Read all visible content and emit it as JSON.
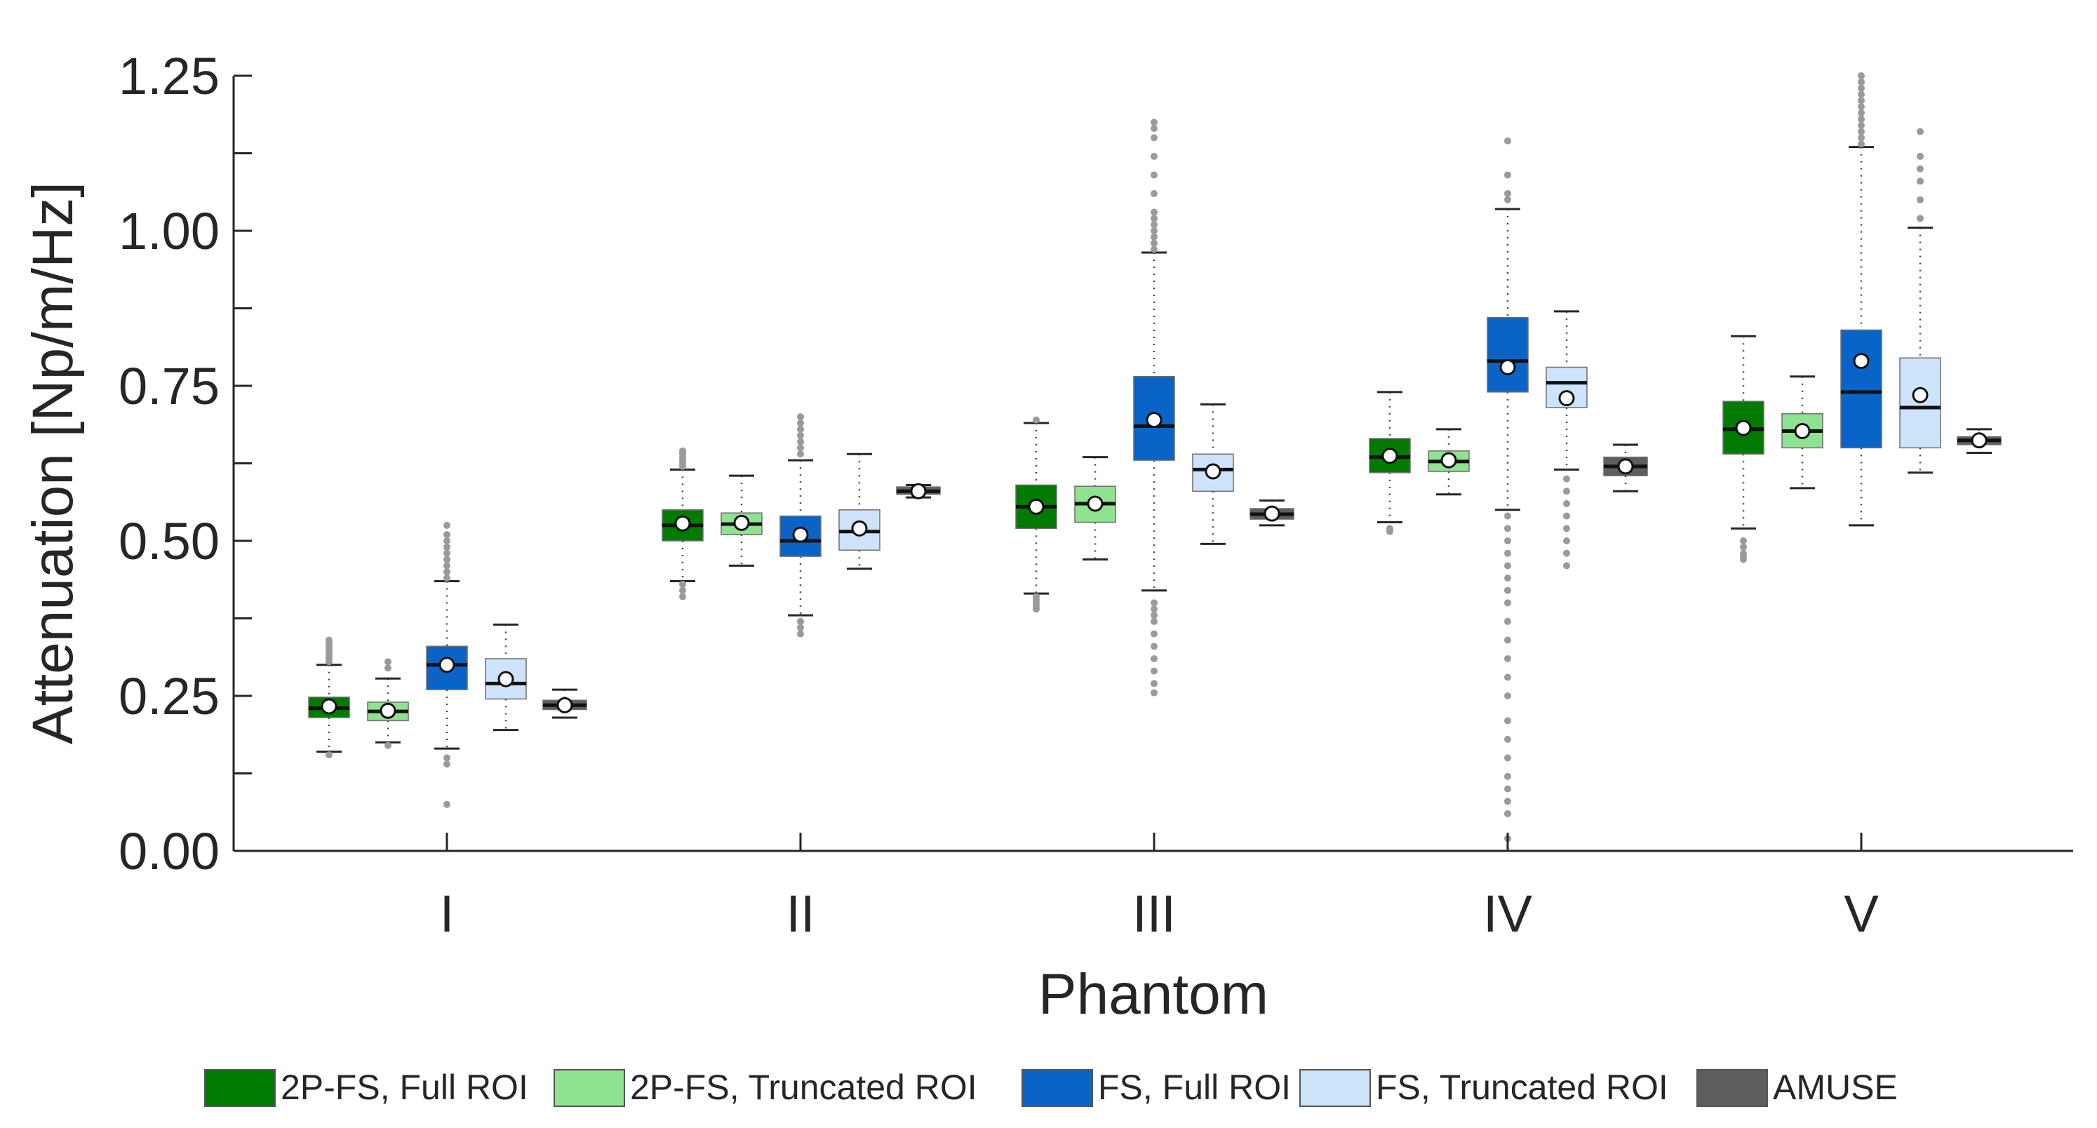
{
  "chart_data": {
    "type": "boxplot",
    "title": "",
    "xlabel": "Phantom",
    "ylabel": "Attenuation [Np/m/Hz]",
    "ylim": [
      0,
      1.25
    ],
    "ytick_values": [
      0,
      0.25,
      0.5,
      0.75,
      1.0,
      1.25
    ],
    "ytick_labels": [
      "0.00",
      "0.25",
      "0.50",
      "0.75",
      "1.00",
      "1.25"
    ],
    "categories": [
      "I",
      "II",
      "III",
      "IV",
      "V"
    ],
    "colors": {
      "2P-FS, Full ROI": "#007a00",
      "2P-FS, Truncated ROI": "#8fe28f",
      "FS, Full ROI": "#0a64c8",
      "FS, Truncated ROI": "#cde3fa",
      "AMUSE": "#5e5e5e"
    },
    "series": [
      {
        "name": "2P-FS, Full ROI",
        "boxes": [
          {
            "q1": 0.215,
            "median": 0.23,
            "q3": 0.248,
            "mean": 0.233,
            "whisker_low": 0.16,
            "whisker_high": 0.3,
            "outliers": [
              0.155,
              0.305,
              0.31,
              0.315,
              0.32,
              0.325,
              0.33,
              0.335,
              0.34
            ]
          },
          {
            "q1": 0.5,
            "median": 0.525,
            "q3": 0.55,
            "mean": 0.528,
            "whisker_low": 0.435,
            "whisker_high": 0.615,
            "outliers": [
              0.41,
              0.42,
              0.43,
              0.62,
              0.625,
              0.63,
              0.635,
              0.64,
              0.645
            ]
          },
          {
            "q1": 0.52,
            "median": 0.555,
            "q3": 0.59,
            "mean": 0.555,
            "whisker_low": 0.415,
            "whisker_high": 0.69,
            "outliers": [
              0.39,
              0.395,
              0.4,
              0.405,
              0.41,
              0.695
            ]
          },
          {
            "q1": 0.61,
            "median": 0.635,
            "q3": 0.665,
            "mean": 0.637,
            "whisker_low": 0.53,
            "whisker_high": 0.74,
            "outliers": [
              0.515,
              0.52
            ]
          },
          {
            "q1": 0.64,
            "median": 0.68,
            "q3": 0.725,
            "mean": 0.682,
            "whisker_low": 0.52,
            "whisker_high": 0.83,
            "outliers": [
              0.47,
              0.475,
              0.48,
              0.49,
              0.5
            ]
          }
        ]
      },
      {
        "name": "2P-FS, Truncated ROI",
        "boxes": [
          {
            "q1": 0.21,
            "median": 0.225,
            "q3": 0.24,
            "mean": 0.226,
            "whisker_low": 0.175,
            "whisker_high": 0.278,
            "outliers": [
              0.17,
              0.295,
              0.305
            ]
          },
          {
            "q1": 0.51,
            "median": 0.527,
            "q3": 0.545,
            "mean": 0.529,
            "whisker_low": 0.46,
            "whisker_high": 0.605,
            "outliers": []
          },
          {
            "q1": 0.53,
            "median": 0.56,
            "q3": 0.588,
            "mean": 0.56,
            "whisker_low": 0.47,
            "whisker_high": 0.635,
            "outliers": []
          },
          {
            "q1": 0.612,
            "median": 0.628,
            "q3": 0.645,
            "mean": 0.63,
            "whisker_low": 0.575,
            "whisker_high": 0.68,
            "outliers": []
          },
          {
            "q1": 0.65,
            "median": 0.677,
            "q3": 0.705,
            "mean": 0.677,
            "whisker_low": 0.585,
            "whisker_high": 0.765,
            "outliers": []
          }
        ]
      },
      {
        "name": "FS, Full ROI",
        "boxes": [
          {
            "q1": 0.26,
            "median": 0.3,
            "q3": 0.33,
            "mean": 0.3,
            "whisker_low": 0.165,
            "whisker_high": 0.435,
            "outliers": [
              0.075,
              0.14,
              0.15,
              0.44,
              0.45,
              0.46,
              0.47,
              0.48,
              0.49,
              0.5,
              0.51,
              0.525
            ]
          },
          {
            "q1": 0.475,
            "median": 0.5,
            "q3": 0.54,
            "mean": 0.51,
            "whisker_low": 0.38,
            "whisker_high": 0.63,
            "outliers": [
              0.35,
              0.36,
              0.37,
              0.64,
              0.65,
              0.66,
              0.67,
              0.68,
              0.69,
              0.7
            ]
          },
          {
            "q1": 0.63,
            "median": 0.685,
            "q3": 0.765,
            "mean": 0.695,
            "whisker_low": 0.42,
            "whisker_high": 0.965,
            "outliers": [
              0.255,
              0.27,
              0.29,
              0.31,
              0.33,
              0.35,
              0.37,
              0.38,
              0.39,
              0.4,
              0.97,
              0.98,
              0.99,
              1.0,
              1.01,
              1.02,
              1.03,
              1.06,
              1.09,
              1.12,
              1.15,
              1.165,
              1.175
            ]
          },
          {
            "q1": 0.74,
            "median": 0.79,
            "q3": 0.86,
            "mean": 0.78,
            "whisker_low": 0.55,
            "whisker_high": 1.035,
            "outliers": [
              0.02,
              0.06,
              0.08,
              0.1,
              0.12,
              0.15,
              0.18,
              0.21,
              0.25,
              0.28,
              0.31,
              0.34,
              0.37,
              0.4,
              0.42,
              0.44,
              0.46,
              0.48,
              0.5,
              0.52,
              0.54,
              1.05,
              1.06,
              1.09,
              1.145
            ]
          },
          {
            "q1": 0.65,
            "median": 0.74,
            "q3": 0.84,
            "mean": 0.79,
            "whisker_low": 0.525,
            "whisker_high": 1.135,
            "outliers": [
              1.14,
              1.15,
              1.16,
              1.17,
              1.18,
              1.19,
              1.2,
              1.21,
              1.22,
              1.23,
              1.24,
              1.25
            ]
          }
        ]
      },
      {
        "name": "FS, Truncated ROI",
        "boxes": [
          {
            "q1": 0.245,
            "median": 0.27,
            "q3": 0.31,
            "mean": 0.277,
            "whisker_low": 0.195,
            "whisker_high": 0.365,
            "outliers": []
          },
          {
            "q1": 0.485,
            "median": 0.515,
            "q3": 0.55,
            "mean": 0.52,
            "whisker_low": 0.455,
            "whisker_high": 0.64,
            "outliers": []
          },
          {
            "q1": 0.58,
            "median": 0.615,
            "q3": 0.64,
            "mean": 0.612,
            "whisker_low": 0.495,
            "whisker_high": 0.72,
            "outliers": []
          },
          {
            "q1": 0.715,
            "median": 0.755,
            "q3": 0.78,
            "mean": 0.73,
            "whisker_low": 0.615,
            "whisker_high": 0.87,
            "outliers": [
              0.46,
              0.48,
              0.5,
              0.52,
              0.54,
              0.56,
              0.58,
              0.6
            ]
          },
          {
            "q1": 0.65,
            "median": 0.715,
            "q3": 0.795,
            "mean": 0.735,
            "whisker_low": 0.61,
            "whisker_high": 1.005,
            "outliers": [
              1.02,
              1.05,
              1.08,
              1.1,
              1.12,
              1.16
            ]
          }
        ]
      },
      {
        "name": "AMUSE",
        "boxes": [
          {
            "q1": 0.228,
            "median": 0.235,
            "q3": 0.243,
            "mean": 0.235,
            "whisker_low": 0.215,
            "whisker_high": 0.26,
            "outliers": []
          },
          {
            "q1": 0.575,
            "median": 0.58,
            "q3": 0.587,
            "mean": 0.58,
            "whisker_low": 0.57,
            "whisker_high": 0.59,
            "outliers": []
          },
          {
            "q1": 0.535,
            "median": 0.543,
            "q3": 0.552,
            "mean": 0.544,
            "whisker_low": 0.525,
            "whisker_high": 0.565,
            "outliers": []
          },
          {
            "q1": 0.605,
            "median": 0.62,
            "q3": 0.635,
            "mean": 0.62,
            "whisker_low": 0.58,
            "whisker_high": 0.655,
            "outliers": []
          },
          {
            "q1": 0.655,
            "median": 0.662,
            "q3": 0.668,
            "mean": 0.662,
            "whisker_low": 0.642,
            "whisker_high": 0.68,
            "outliers": []
          }
        ]
      }
    ],
    "legend": [
      "2P-FS, Full ROI",
      "2P-FS, Truncated ROI",
      "FS, Full ROI",
      "FS, Truncated ROI",
      "AMUSE"
    ],
    "legend_position": "bottom",
    "grid": false
  }
}
